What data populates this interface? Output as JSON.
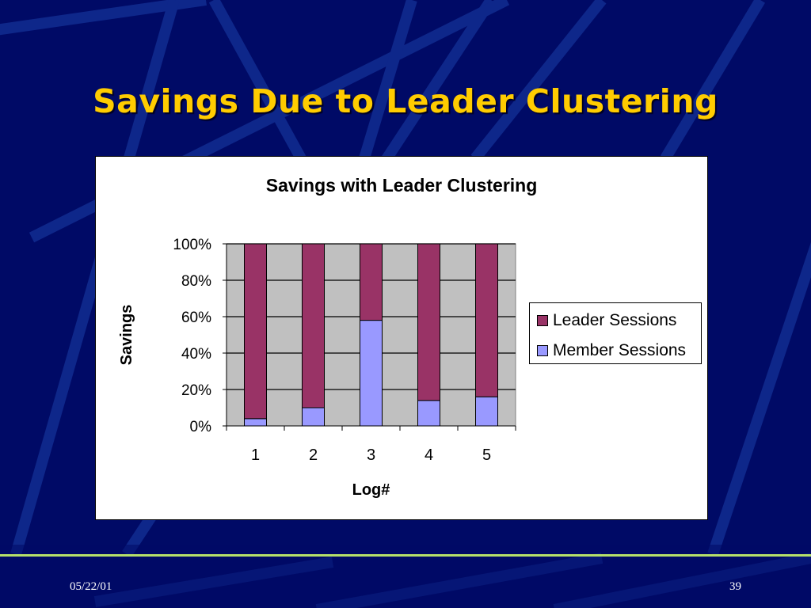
{
  "slide": {
    "title": "Savings Due to Leader Clustering",
    "date": "05/22/01",
    "page_number": "39"
  },
  "colors": {
    "background": "#000a66",
    "title": "#ffcc00",
    "leader": "#993366",
    "member": "#9999ff",
    "plot_area": "#c0c0c0",
    "footer_line": "#b6e06a"
  },
  "chart_data": {
    "type": "bar",
    "stacked": true,
    "percent_stacked": true,
    "title": "Savings with Leader Clustering",
    "xlabel": "Log#",
    "ylabel": "Savings",
    "categories": [
      "1",
      "2",
      "3",
      "4",
      "5"
    ],
    "y_ticks": [
      "0%",
      "20%",
      "40%",
      "60%",
      "80%",
      "100%"
    ],
    "ylim": [
      0,
      100
    ],
    "grid": true,
    "legend_position": "right",
    "series": [
      {
        "name": "Member Sessions",
        "values": [
          4,
          10,
          58,
          14,
          16
        ],
        "color": "#9999ff"
      },
      {
        "name": "Leader Sessions",
        "values": [
          96,
          90,
          42,
          86,
          84
        ],
        "color": "#993366"
      }
    ]
  }
}
